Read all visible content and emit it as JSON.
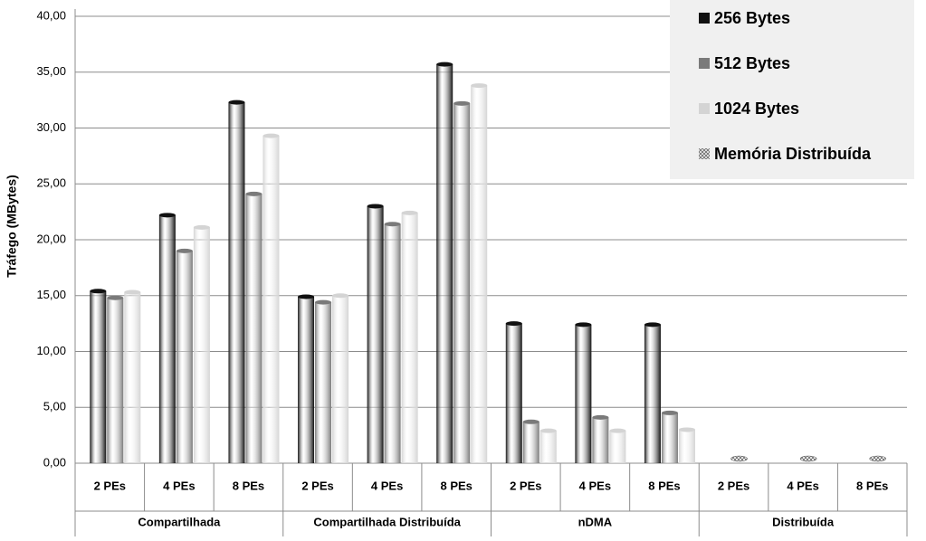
{
  "chart_data": {
    "type": "bar",
    "y_label": "Tráfego (MBytes)",
    "categories": [
      "2 PEs",
      "4 PEs",
      "8 PEs",
      "2 PEs",
      "4 PEs",
      "8 PEs",
      "2 PEs",
      "4 PEs",
      "8 PEs",
      "2 PEs",
      "4 PEs",
      "8 PEs"
    ],
    "groups": [
      "Compartilhada",
      "Compartilhada Distribuída",
      "nDMA",
      "Distribuída"
    ],
    "series": [
      {
        "name": "256 Bytes",
        "color": "#111111",
        "values": [
          15.4,
          22.2,
          32.3,
          14.9,
          23.0,
          35.7,
          12.5,
          12.4,
          12.4,
          null,
          null,
          null
        ]
      },
      {
        "name": "512 Bytes",
        "color": "#7a7a7a",
        "values": [
          14.8,
          19.0,
          24.1,
          14.4,
          21.4,
          32.2,
          3.7,
          4.1,
          4.5,
          null,
          null,
          null
        ]
      },
      {
        "name": "1024 Bytes",
        "color": "#d4d4d4",
        "values": [
          15.3,
          21.1,
          29.3,
          15.0,
          22.4,
          33.8,
          2.9,
          2.9,
          3.0,
          null,
          null,
          null
        ]
      },
      {
        "name": "Memória Distribuída",
        "color": "#666666",
        "values": [
          null,
          null,
          null,
          null,
          null,
          null,
          null,
          null,
          null,
          0,
          0,
          0
        ]
      }
    ],
    "ylim": [
      0,
      40
    ],
    "yticks": [
      {
        "value": 0,
        "label": "0,00"
      },
      {
        "value": 5,
        "label": "5,00"
      },
      {
        "value": 10,
        "label": "10,00"
      },
      {
        "value": 15,
        "label": "15,00"
      },
      {
        "value": 20,
        "label": "20,00"
      },
      {
        "value": 25,
        "label": "25,00"
      },
      {
        "value": 30,
        "label": "30,00"
      },
      {
        "value": 35,
        "label": "35,00"
      },
      {
        "value": 40,
        "label": "40,00"
      }
    ],
    "grid": true,
    "legend": "top-right"
  }
}
